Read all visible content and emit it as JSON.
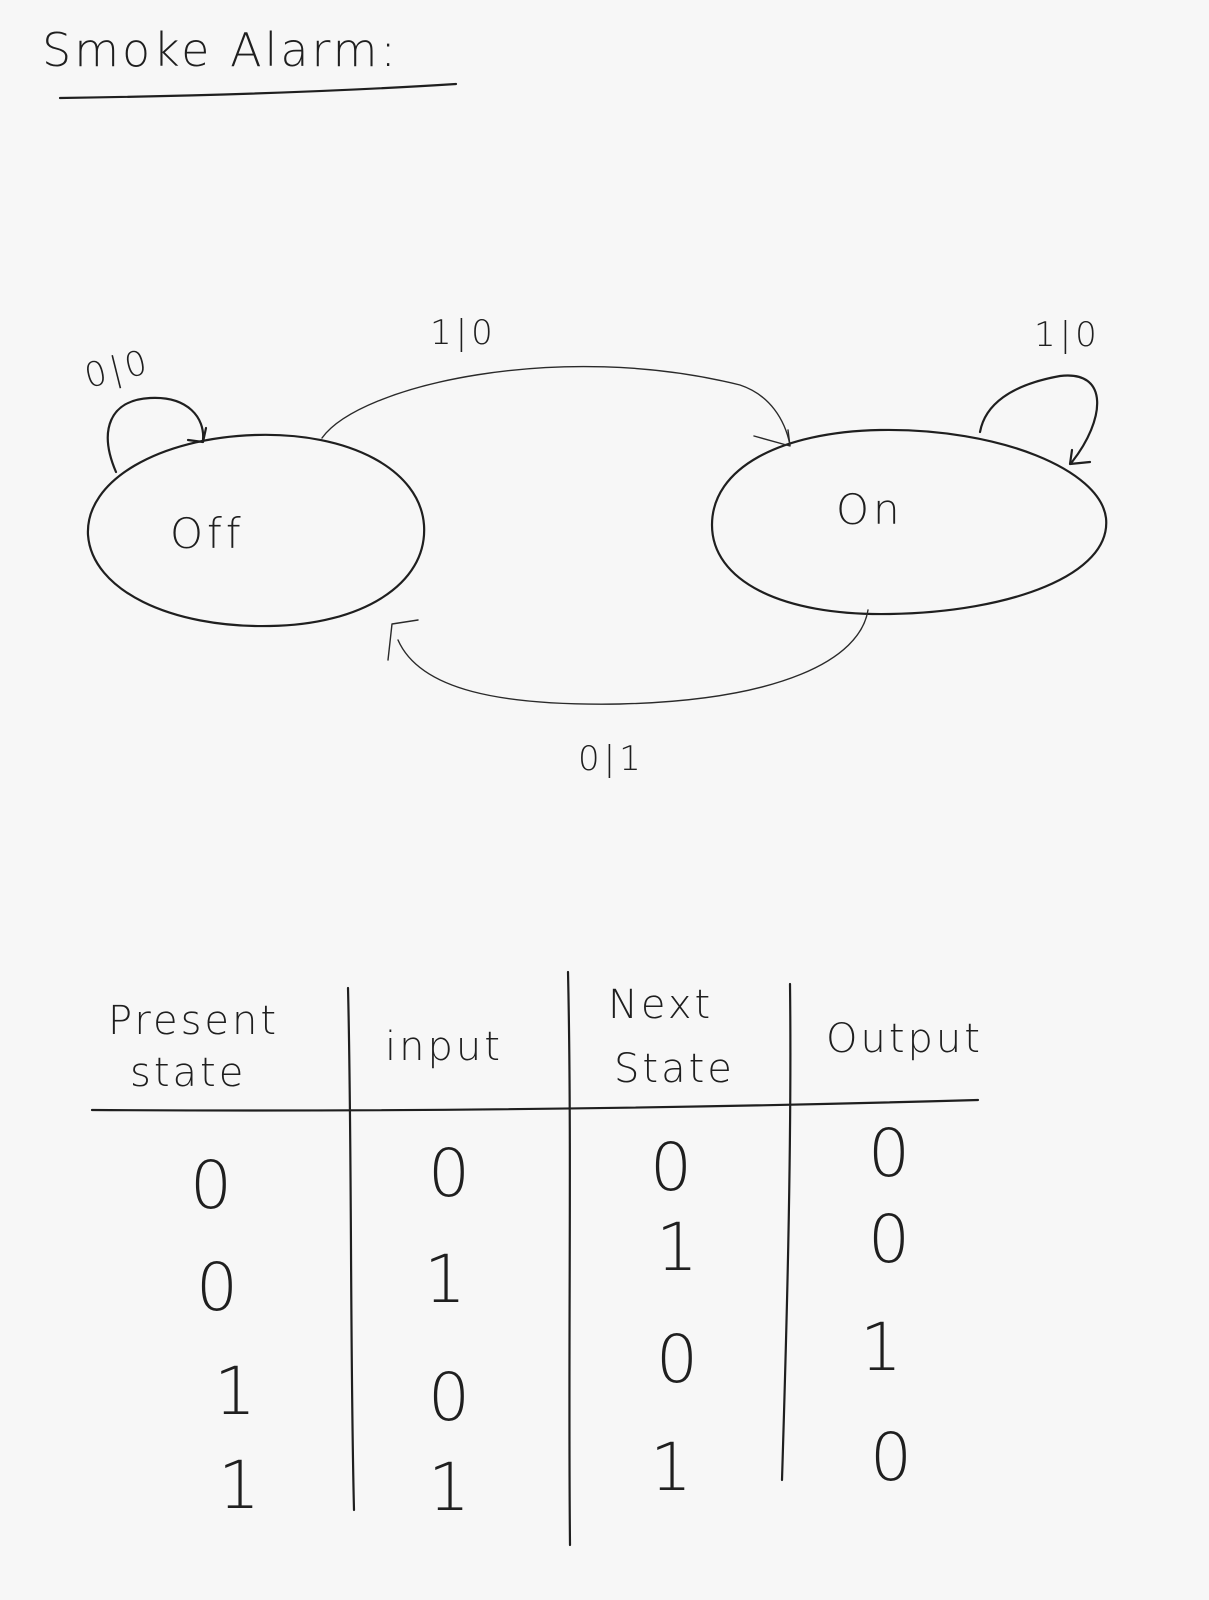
{
  "title": "Smoke Alarm:",
  "states": {
    "off": "Off",
    "on": "On"
  },
  "transitions": {
    "off_self": "0|0",
    "off_to_on": "1|0",
    "on_self": "1|0",
    "on_to_off": "0|1"
  },
  "table": {
    "headers": {
      "present_line1": "Present",
      "present_line2": "state",
      "input": "input",
      "next_line1": "Next",
      "next_line2": "State",
      "output": "Output"
    },
    "rows": [
      {
        "present": "0",
        "input": "0",
        "next": "0",
        "output": "0"
      },
      {
        "present": "0",
        "input": "1",
        "next": "1",
        "output": "0"
      },
      {
        "present": "1",
        "input": "0",
        "next": "0",
        "output": "1"
      },
      {
        "present": "1",
        "input": "1",
        "next": "1",
        "output": "0"
      }
    ]
  }
}
